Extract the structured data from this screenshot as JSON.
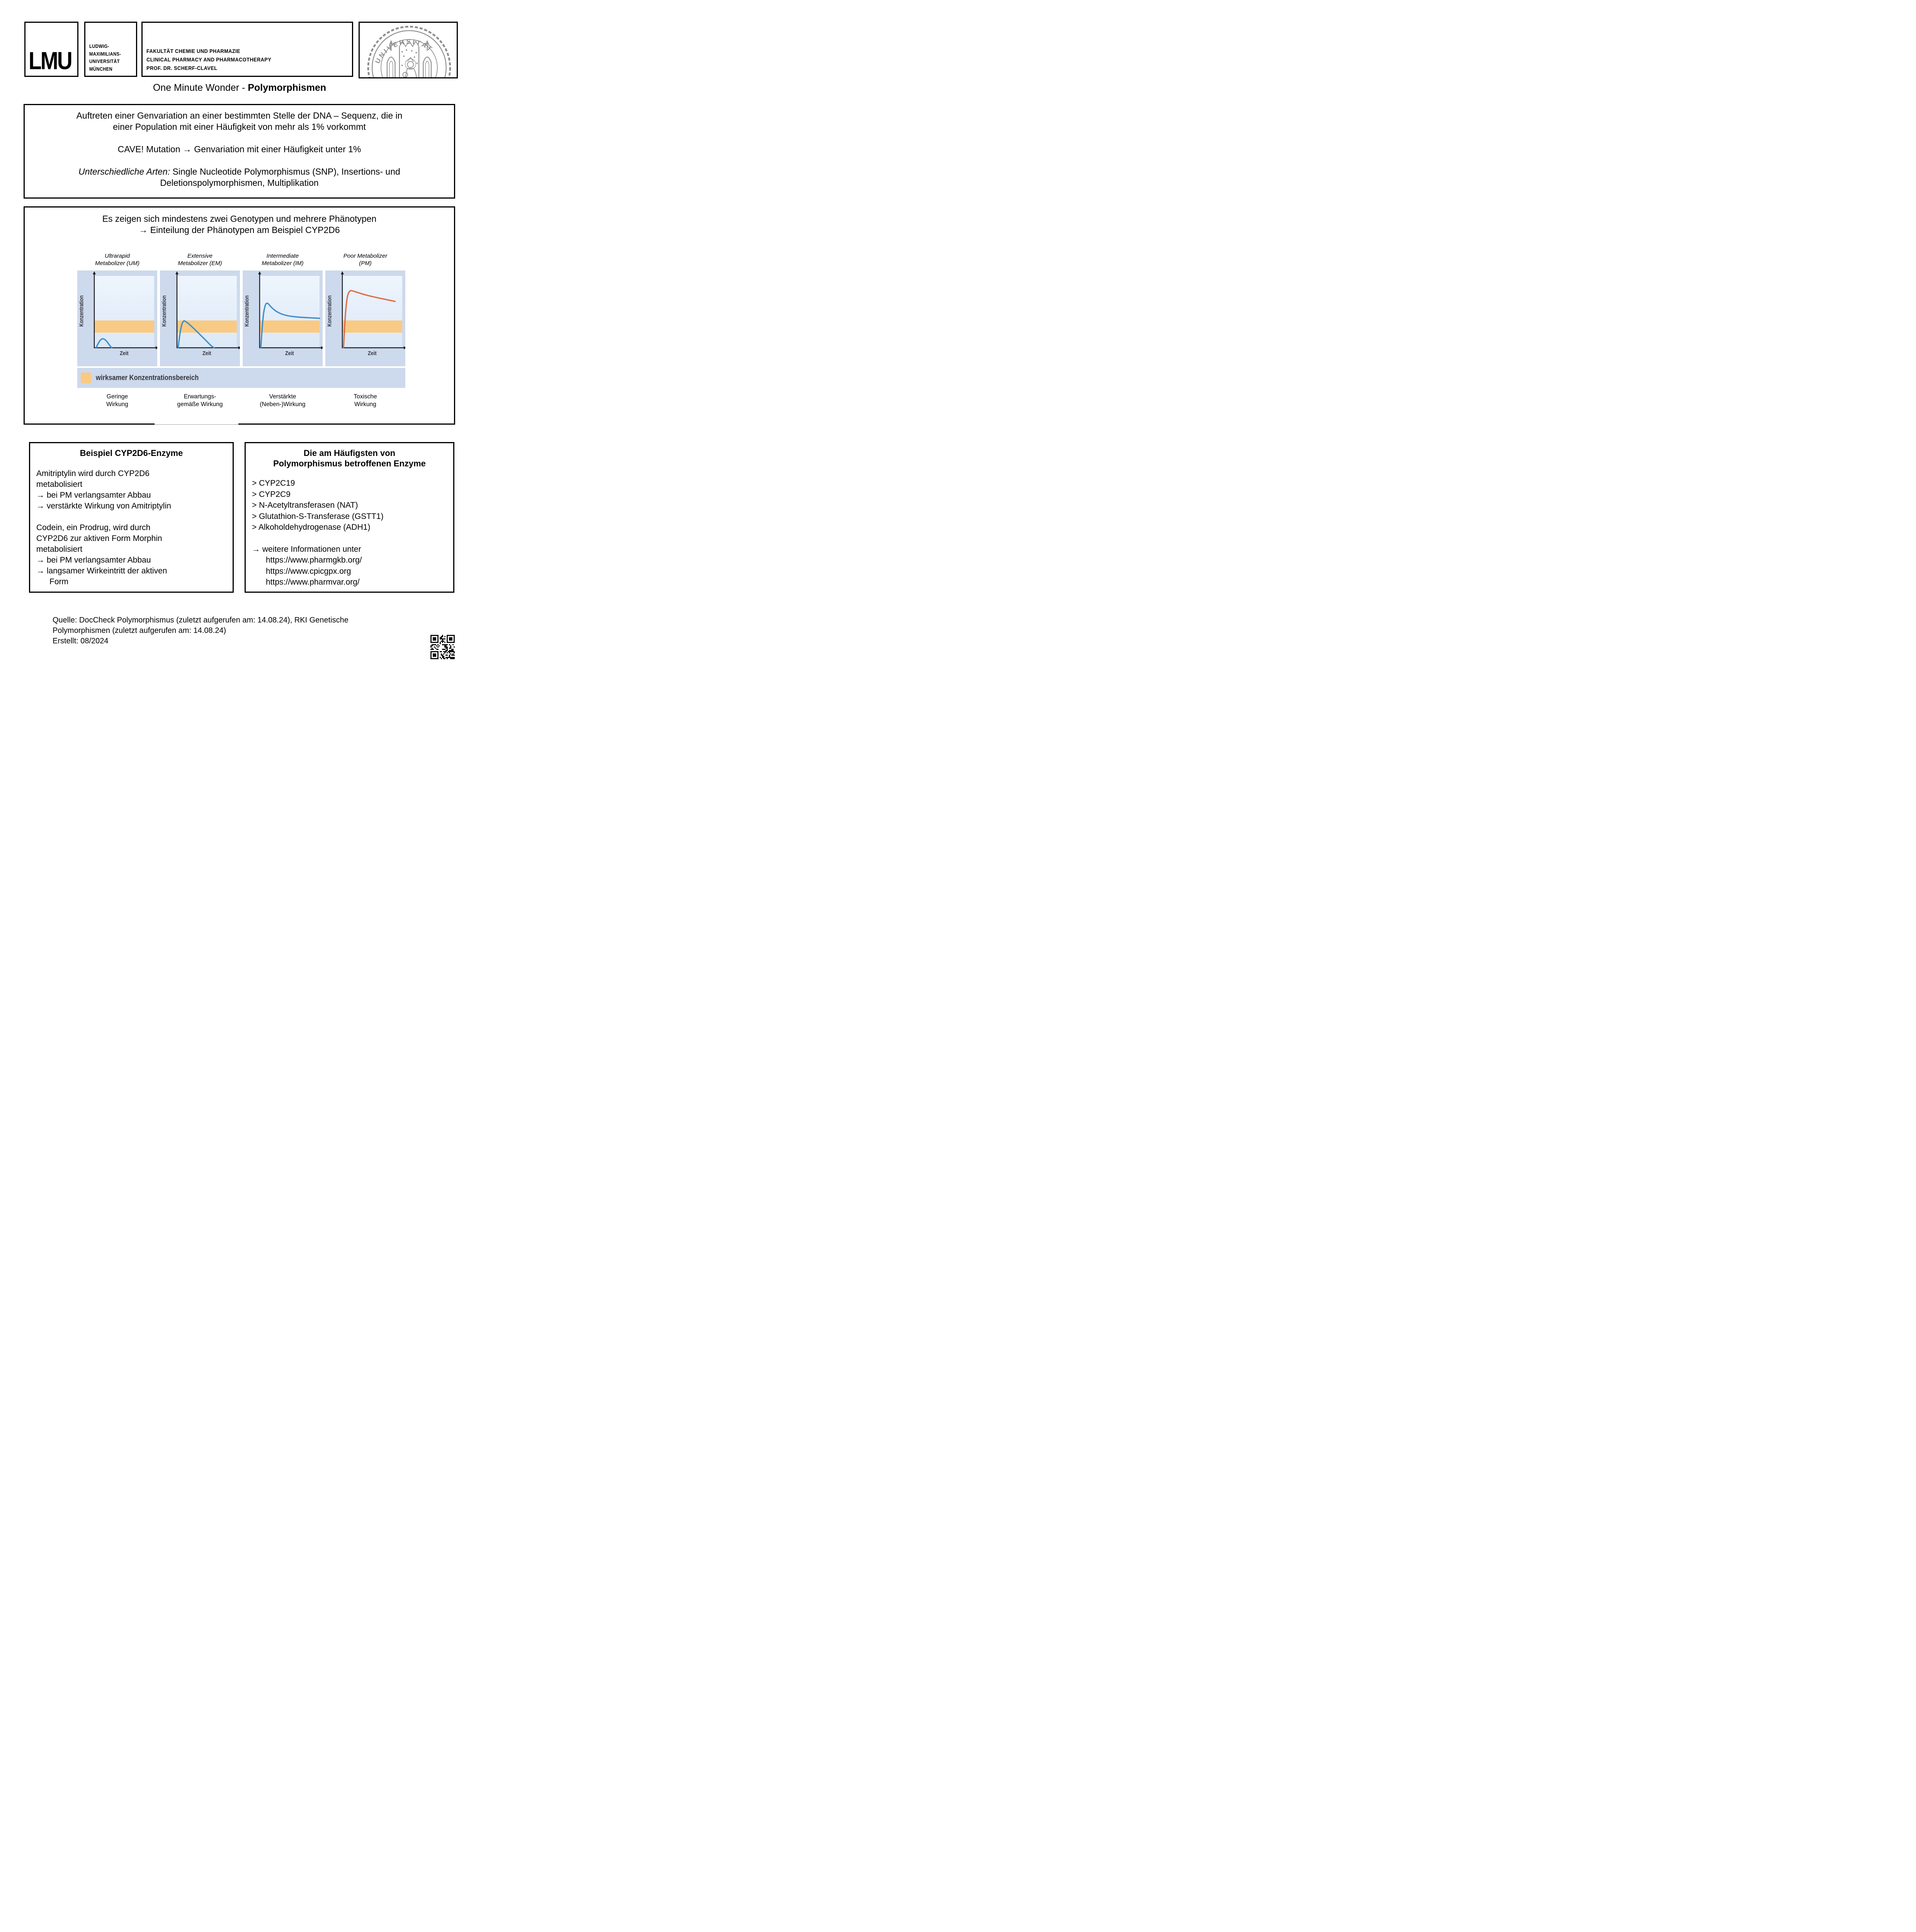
{
  "header": {
    "logo": "LMU",
    "university_lines": [
      "LUDWIG-",
      "MAXIMILIANS-",
      "UNIVERSITÄT",
      "MÜNCHEN"
    ],
    "faculty_lines": [
      "FAKULTÄT CHEMIE UND PHARMAZIE",
      "CLINICAL PHARMACY AND PHARMACOTHERAPY",
      "PROF. DR. SCHERF-CLAVEL"
    ],
    "seal_ring_top": "UNIVERSITAT",
    "seal_ring_bottom": "SIGILL:"
  },
  "title": {
    "regular": "One Minute Wonder - ",
    "bold": "Polymorphismen"
  },
  "definition_box": {
    "p1_line1": "Auftreten einer Genvariation an einer bestimmten Stelle der DNA – Sequenz, die in",
    "p1_line2": "einer Population mit einer Häufigkeit von mehr als 1% vorkommt",
    "p2": "CAVE! Mutation → Genvariation mit einer Häufigkeit unter 1%",
    "p3_italic": "Unterschiedliche Arten:",
    "p3_rest": " Single Nucleotide Polymorphismus (SNP), Insertions- und",
    "p3_line2": "Deletionspolymorphismen, Multiplikation"
  },
  "phenotype_box": {
    "heading_line1": "Es zeigen sich mindestens zwei Genotypen und mehrere Phänotypen",
    "heading_line2": "→ Einteilung der Phänotypen am Beispiel CYP2D6",
    "axis_x": "Zeit",
    "axis_y": "Konzentration",
    "legend": "wirksamer Konzentrationsbereich",
    "charts": [
      {
        "title_line1": "Ultrarapid",
        "title_line2": "Metabolizer (UM)",
        "effect_line1": "Geringe",
        "effect_line2": "Wirkung"
      },
      {
        "title_line1": "Extensive",
        "title_line2": "Metabolizer (EM)",
        "effect_line1": "Erwartungs-",
        "effect_line2": "gemäße Wirkung"
      },
      {
        "title_line1": "Intermediate",
        "title_line2": "Metabolizer (IM)",
        "effect_line1": "Verstärkte",
        "effect_line2": "(Neben-)Wirkung"
      },
      {
        "title_line1": "Poor Metabolizer",
        "title_line2": "(PM)",
        "effect_line1": "Toxische",
        "effect_line2": "Wirkung"
      }
    ]
  },
  "chart_data": {
    "type": "line",
    "title": "Einteilung der Phänotypen am Beispiel CYP2D6",
    "xlabel": "Zeit",
    "ylabel": "Konzentration",
    "band_label": "wirksamer Konzentrationsbereich",
    "band_range_norm": [
      0.21,
      0.38
    ],
    "axis_range_note": "qualitative sketch, no numeric ticks",
    "series": [
      {
        "name": "Ultrarapid Metabolizer (UM)",
        "color": "#3e8fc9",
        "points": [
          [
            0.03,
            0
          ],
          [
            0.08,
            0.09
          ],
          [
            0.14,
            0.135
          ],
          [
            0.2,
            0.1
          ],
          [
            0.26,
            0.03
          ],
          [
            0.29,
            0
          ]
        ]
      },
      {
        "name": "Extensive Metabolizer (EM)",
        "color": "#3e8fc9",
        "points": [
          [
            0.02,
            0
          ],
          [
            0.05,
            0.22
          ],
          [
            0.1,
            0.385
          ],
          [
            0.16,
            0.36
          ],
          [
            0.28,
            0.27
          ],
          [
            0.45,
            0.13
          ],
          [
            0.58,
            0.02
          ],
          [
            0.62,
            0
          ]
        ]
      },
      {
        "name": "Intermediate Metabolizer (IM)",
        "color": "#3e8fc9",
        "points": [
          [
            0.02,
            0
          ],
          [
            0.05,
            0.4
          ],
          [
            0.09,
            0.6
          ],
          [
            0.13,
            0.63
          ],
          [
            0.19,
            0.565
          ],
          [
            0.3,
            0.49
          ],
          [
            0.45,
            0.445
          ],
          [
            0.65,
            0.425
          ],
          [
            1.0,
            0.41
          ]
        ]
      },
      {
        "name": "Poor Metabolizer (PM)",
        "color": "#de6c48",
        "points": [
          [
            0.02,
            0
          ],
          [
            0.045,
            0.42
          ],
          [
            0.08,
            0.72
          ],
          [
            0.125,
            0.8
          ],
          [
            0.18,
            0.79
          ],
          [
            0.38,
            0.735
          ],
          [
            0.62,
            0.69
          ],
          [
            0.88,
            0.645
          ]
        ]
      }
    ]
  },
  "example_box": {
    "title": "Beispiel CYP2D6-Enzyme",
    "s1_line1": "Amitriptylin wird durch CYP2D6",
    "s1_line2": "metabolisiert",
    "s1_arrow1": "→ bei PM verlangsamter Abbau",
    "s1_arrow2": "→ verstärkte Wirkung von Amitriptylin",
    "s2_line1": "Codein, ein Prodrug, wird durch",
    "s2_line2": "CYP2D6 zur aktiven Form Morphin",
    "s2_line3": "metabolisiert",
    "s2_arrow1": "→ bei PM verlangsamter Abbau",
    "s2_arrow2": "→ langsamer Wirkeintritt der aktiven",
    "s2_arrow2_cont": "Form"
  },
  "enzyme_box": {
    "title_line1": "Die am Häufigsten von",
    "title_line2": "Polymorphismus betroffenen Enzyme",
    "items": [
      "> CYP2C19",
      "> CYP2C9",
      "> N-Acetyltransferasen (NAT)",
      "> Glutathion-S-Transferase (GSTT1)",
      "> Alkoholdehydrogenase (ADH1)"
    ],
    "info_arrow": "→ weitere Informationen unter",
    "links": [
      "https://www.pharmgkb.org/",
      "https://www.cpicgpx.org",
      "https://www.pharmvar.org/"
    ]
  },
  "footer": {
    "line1": "Quelle: DocCheck Polymorphismus (zuletzt aufgerufen am: 14.08.24), RKI Genetische",
    "line2": "Polymorphismen (zuletzt aufgerufen am: 14.08.24)",
    "line3": "Erstellt: 08/2024"
  },
  "colors": {
    "tile_background": "#cdd9ec",
    "plot_background": "#e9f1fa",
    "band": "#f9ca84",
    "curve_blue": "#3e8fc9",
    "curve_red": "#de6c48",
    "axis": "#1c1d22",
    "chart_label": "#33343d",
    "seal_gray": "#8d8d8d"
  }
}
